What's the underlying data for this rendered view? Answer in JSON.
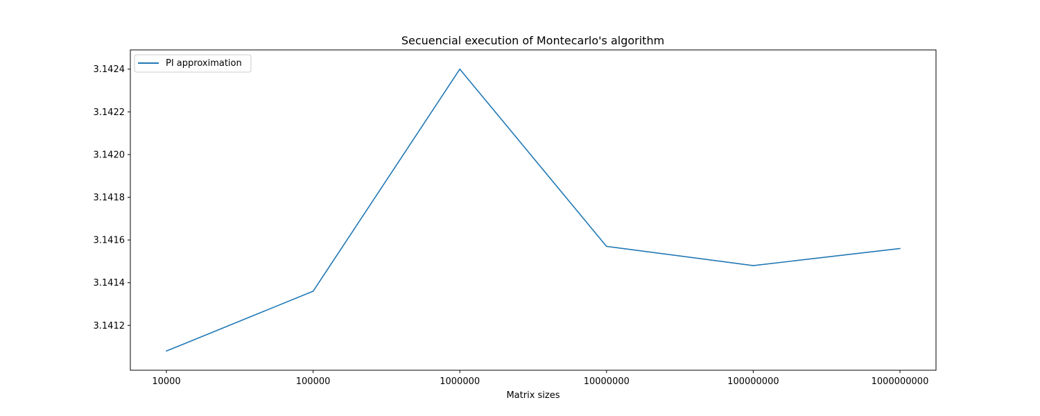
{
  "chart_data": {
    "type": "line",
    "title": "Secuencial execution of Montecarlo's algorithm",
    "xlabel": "Matrix sizes",
    "ylabel": "",
    "categories": [
      "10000",
      "100000",
      "1000000",
      "10000000",
      "100000000",
      "1000000000"
    ],
    "series": [
      {
        "name": "PI approximation",
        "values": [
          3.14108,
          3.14136,
          3.1424,
          3.14157,
          3.14148,
          3.14156
        ],
        "color": "#1f77b4"
      }
    ],
    "yticks": [
      "3.1412",
      "3.1414",
      "3.1416",
      "3.1418",
      "3.1420",
      "3.1422",
      "3.1424"
    ],
    "ylim": [
      3.14099,
      3.14249
    ],
    "grid": false,
    "legend_position": "top-left"
  }
}
